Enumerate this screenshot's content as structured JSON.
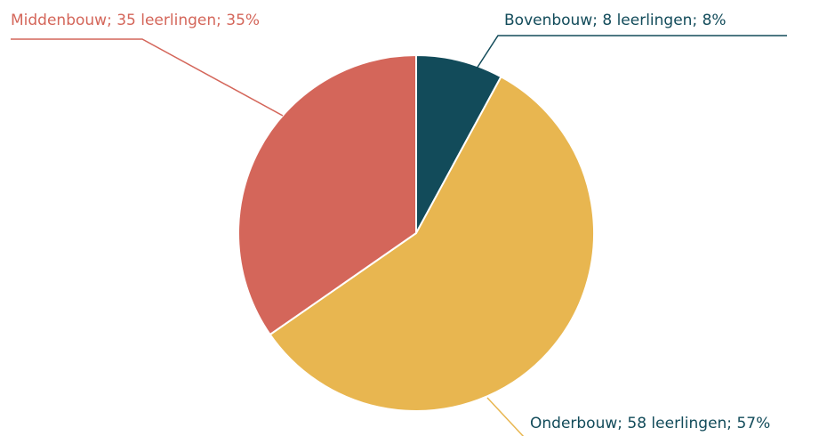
{
  "chart_data": {
    "type": "pie",
    "categories": [
      "Bovenbouw",
      "Onderbouw",
      "Middenbouw"
    ],
    "values": [
      8,
      58,
      35
    ],
    "value_labels": [
      "Bovenbouw; 8 leerlingen; 8%",
      "Onderbouw; 58 leerlingen; 57%",
      "Middenbouw; 35 leerlingen; 35%"
    ],
    "colors": [
      "#124b5a",
      "#e8b650",
      "#d4665a"
    ],
    "label_colors": [
      "#124b5a",
      "#124b5a",
      "#d4665a"
    ]
  }
}
